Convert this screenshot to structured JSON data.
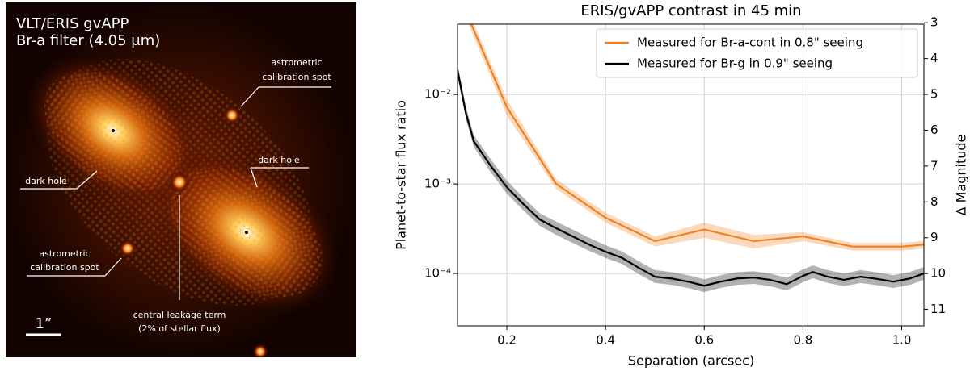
{
  "image": {
    "title": "VLT/ERIS gvAPP",
    "subtitle": "Br-a filter (4.05 μm)",
    "annotations": [
      {
        "lines": [
          "astrometric",
          "calibration spot"
        ]
      },
      {
        "lines": [
          "dark hole"
        ]
      },
      {
        "lines": [
          "dark hole"
        ]
      },
      {
        "lines": [
          "astrometric",
          "calibration spot"
        ]
      },
      {
        "lines": [
          "central leakage term",
          "(2% of stellar flux)"
        ]
      }
    ],
    "scale_bar": "1”"
  },
  "chart_data": {
    "type": "line",
    "title": "ERIS/gvAPP contrast in 45 min",
    "xlabel": "Separation (arcsec)",
    "ylabel": "Planet-to-star flux ratio",
    "y2label": "Δ Magnitude",
    "xlim": [
      0.1,
      1.045
    ],
    "xticks": [
      0.2,
      0.4,
      0.6,
      0.8,
      {
        "value": 1,
        "label": "1.0"
      }
    ],
    "ylim": [
      2.6e-05,
      0.061
    ],
    "log_y": true,
    "yticks": [
      {
        "value": 0.0001,
        "label": "10⁻⁴"
      },
      {
        "value": 0.001,
        "label": "10⁻³"
      },
      {
        "value": 0.01,
        "label": "10⁻²"
      }
    ],
    "y2lim": [
      11.46,
      3.04
    ],
    "y2ticks": [
      3,
      4,
      5,
      6,
      7,
      8,
      9,
      10,
      11
    ],
    "grid": true,
    "legend": "upper right",
    "series": [
      {
        "name": "Measured for Br-a-cont in 0.8\" seeing",
        "color": "#f28020",
        "x": [
          0.1,
          0.2,
          0.3,
          0.4,
          0.5,
          0.6,
          0.7,
          0.8,
          0.9,
          1.0,
          1.045
        ],
        "values": [
          0.14,
          0.0072,
          0.001,
          0.00042,
          0.00023,
          0.00031,
          0.00023,
          0.00026,
          0.0002,
          0.0002,
          0.00021
        ],
        "lower": [
          0.12,
          0.0058,
          0.00088,
          0.00037,
          0.0002,
          0.00025,
          0.00019,
          0.00023,
          0.00018,
          0.00018,
          0.00019
        ],
        "upper": [
          0.16,
          0.0088,
          0.00113,
          0.00048,
          0.00026,
          0.00037,
          0.00027,
          0.00029,
          0.00022,
          0.00022,
          0.00023
        ]
      },
      {
        "name": "Measured for Br-g in 0.9\" seeing",
        "color": "#000000",
        "x": [
          0.1,
          0.117,
          0.133,
          0.167,
          0.2,
          0.233,
          0.267,
          0.3,
          0.333,
          0.367,
          0.4,
          0.433,
          0.467,
          0.5,
          0.533,
          0.567,
          0.6,
          0.633,
          0.667,
          0.7,
          0.733,
          0.767,
          0.8,
          0.82,
          0.85,
          0.883,
          0.917,
          0.95,
          0.983,
          1.017,
          1.045
        ],
        "values": [
          0.0186,
          0.0062,
          0.003,
          0.0016,
          0.00092,
          0.0006,
          0.0004,
          0.00032,
          0.00026,
          0.00021,
          0.000175,
          0.00015,
          0.000116,
          9.2e-05,
          8.8e-05,
          8.1e-05,
          7.3e-05,
          8.1e-05,
          8.8e-05,
          9e-05,
          8.5e-05,
          7.6e-05,
          9.4e-05,
          0.000104,
          9.2e-05,
          8.5e-05,
          9.2e-05,
          8.7e-05,
          8.1e-05,
          8.8e-05,
          0.0001
        ],
        "lower": [
          0.0158,
          0.0053,
          0.0026,
          0.00136,
          0.00078,
          0.00051,
          0.00034,
          0.00027,
          0.00022,
          0.000179,
          0.000149,
          0.000128,
          9.86e-05,
          7.82e-05,
          7.48e-05,
          6.89e-05,
          6.2e-05,
          6.89e-05,
          7.48e-05,
          7.65e-05,
          7.23e-05,
          6.46e-05,
          7.99e-05,
          8.84e-05,
          7.82e-05,
          7.23e-05,
          7.82e-05,
          7.4e-05,
          6.89e-05,
          7.48e-05,
          8.5e-05
        ],
        "upper": [
          0.022,
          0.0073,
          0.0035,
          0.00189,
          0.00109,
          0.00071,
          0.00047,
          0.00038,
          0.00031,
          0.00025,
          0.000207,
          0.000177,
          0.000137,
          0.000109,
          0.000104,
          9.56e-05,
          8.61e-05,
          9.56e-05,
          0.000104,
          0.000106,
          0.0001,
          8.97e-05,
          0.000111,
          0.000123,
          0.000109,
          0.0001,
          0.000109,
          0.000103,
          9.56e-05,
          0.000104,
          0.000118
        ]
      }
    ]
  }
}
